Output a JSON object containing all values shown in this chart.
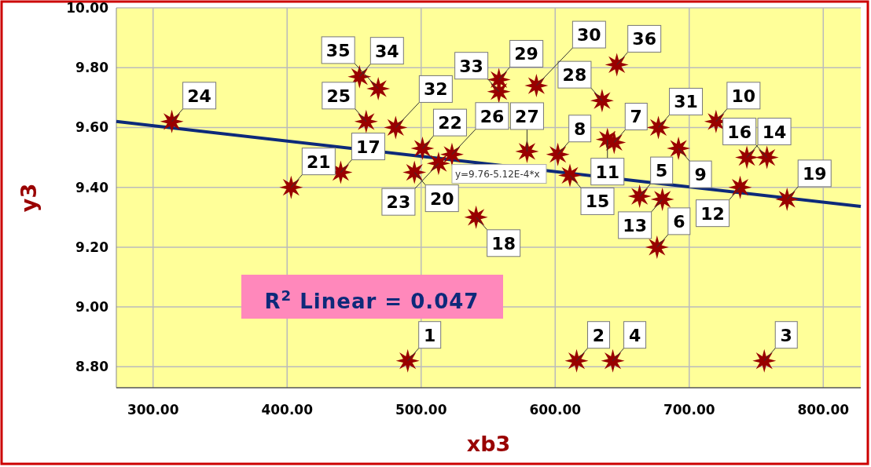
{
  "chart_data": {
    "type": "scatter",
    "xlabel": "xb3",
    "ylabel": "y3",
    "xlim": [
      272.6,
      828
    ],
    "ylim": [
      8.73,
      10.0
    ],
    "xticks": [
      {
        "value": 300,
        "label": "300.00"
      },
      {
        "value": 400,
        "label": "400.00"
      },
      {
        "value": 500,
        "label": "500.00"
      },
      {
        "value": 600,
        "label": "600.00"
      },
      {
        "value": 700,
        "label": "700.00"
      },
      {
        "value": 800,
        "label": "800.00"
      }
    ],
    "yticks": [
      {
        "value": 8.8,
        "label": "8.80"
      },
      {
        "value": 9.0,
        "label": "9.00"
      },
      {
        "value": 9.2,
        "label": "9.20"
      },
      {
        "value": 9.4,
        "label": "9.40"
      },
      {
        "value": 9.6,
        "label": "9.60"
      },
      {
        "value": 9.8,
        "label": "9.80"
      },
      {
        "value": 10.0,
        "label": "10.00"
      }
    ],
    "grid": true,
    "series": [
      {
        "color": "#990000",
        "marker": "star",
        "x": [
          490,
          616,
          756,
          643,
          663,
          676,
          644,
          602,
          692,
          720,
          639,
          738,
          680,
          743,
          611,
          758,
          440,
          541,
          773,
          495,
          403,
          501,
          513,
          314,
          459,
          523,
          579,
          635,
          558,
          586,
          677,
          481,
          558,
          454,
          468,
          646
        ],
        "values": [
          8.82,
          8.82,
          8.82,
          8.82,
          9.37,
          9.2,
          9.55,
          9.51,
          9.53,
          9.62,
          9.56,
          9.4,
          9.36,
          9.5,
          9.44,
          9.5,
          9.45,
          9.3,
          9.36,
          9.45,
          9.4,
          9.53,
          9.48,
          9.62,
          9.62,
          9.51,
          9.52,
          9.69,
          9.76,
          9.74,
          9.6,
          9.6,
          9.72,
          9.77,
          9.73,
          9.81
        ]
      },
      {
        "type": "line",
        "marker": "none",
        "color": "#0d2a7a",
        "x": [
          272.6,
          828
        ],
        "values": [
          9.62,
          9.336
        ]
      }
    ],
    "annotations": [
      {
        "text": "y=9.76-5.12E-4*x",
        "x": 523,
        "y": 9.492
      },
      "R$^{2}$ Linear = 0.047",
      {
        "text": "1",
        "x": 490,
        "y": 8.82
      },
      {
        "text": "2",
        "x": 616,
        "y": 8.82
      },
      {
        "text": "3",
        "x": 756,
        "y": 8.82
      },
      {
        "text": "4",
        "x": 643,
        "y": 8.82
      },
      {
        "text": "5",
        "x": 663,
        "y": 9.37
      },
      {
        "text": "6",
        "x": 676,
        "y": 9.2
      },
      {
        "text": "7",
        "x": 644,
        "y": 9.55
      },
      {
        "text": "8",
        "x": 602,
        "y": 9.51
      },
      {
        "text": "9",
        "x": 692,
        "y": 9.53
      },
      {
        "text": "10",
        "x": 720,
        "y": 9.62
      },
      {
        "text": "11",
        "x": 639,
        "y": 9.56
      },
      {
        "text": "12",
        "x": 738,
        "y": 9.4
      },
      {
        "text": "13",
        "x": 680,
        "y": 9.36
      },
      {
        "text": "14",
        "x": 743,
        "y": 9.5
      },
      {
        "text": "15",
        "x": 611,
        "y": 9.44
      },
      {
        "text": "16",
        "x": 758,
        "y": 9.5
      },
      {
        "text": "17",
        "x": 440,
        "y": 9.45
      },
      {
        "text": "18",
        "x": 541,
        "y": 9.3
      },
      {
        "text": "19",
        "x": 773,
        "y": 9.36
      },
      {
        "text": "20",
        "x": 495,
        "y": 9.45
      },
      {
        "text": "21",
        "x": 403,
        "y": 9.4
      },
      {
        "text": "22",
        "x": 501,
        "y": 9.53
      },
      {
        "text": "23",
        "x": 513,
        "y": 9.48
      },
      {
        "text": "24",
        "x": 314,
        "y": 9.62
      },
      {
        "text": "25",
        "x": 459,
        "y": 9.62
      },
      {
        "text": "26",
        "x": 523,
        "y": 9.51
      },
      {
        "text": "27",
        "x": 579,
        "y": 9.52
      },
      {
        "text": "28",
        "x": 635,
        "y": 9.69
      },
      {
        "text": "29",
        "x": 558,
        "y": 9.76
      },
      {
        "text": "30",
        "x": 586,
        "y": 9.74
      },
      {
        "text": "31",
        "x": 677,
        "y": 9.6
      },
      {
        "text": "32",
        "x": 481,
        "y": 9.6
      },
      {
        "text": "33",
        "x": 558,
        "y": 9.72
      },
      {
        "text": "34",
        "x": 454,
        "y": 9.77
      },
      {
        "text": "35",
        "x": 468,
        "y": 9.73
      },
      {
        "text": "36",
        "x": 646,
        "y": 9.81
      }
    ]
  }
}
